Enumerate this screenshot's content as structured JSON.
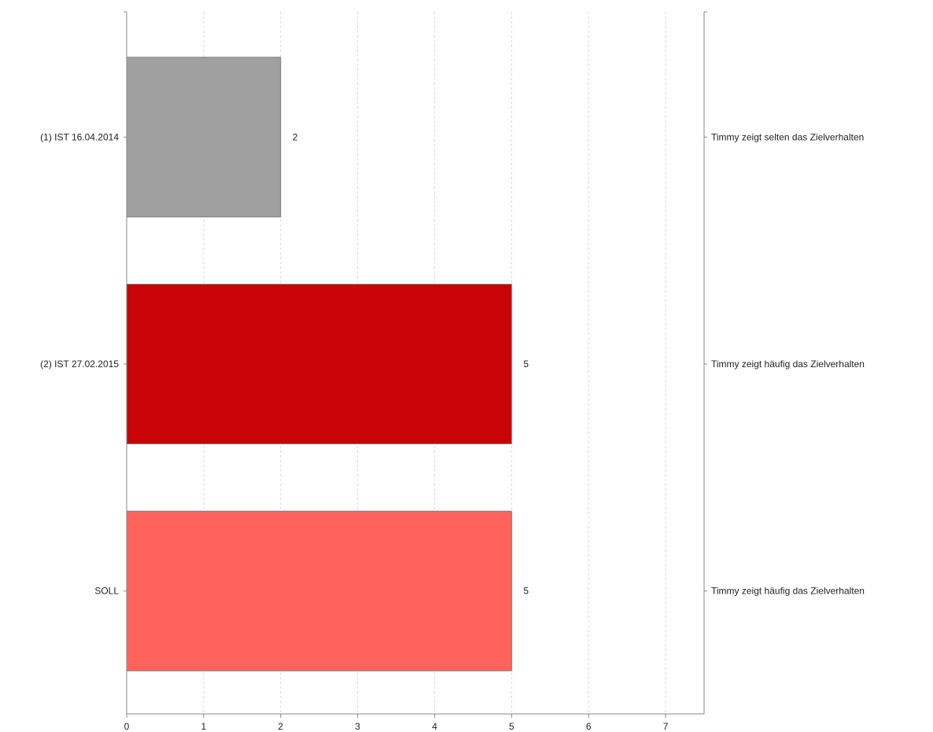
{
  "chart_data": {
    "type": "bar",
    "orientation": "horizontal",
    "categories": [
      "(1) IST 16.04.2014",
      "(2) IST 27.02.2015",
      "SOLL"
    ],
    "values": [
      2,
      5,
      5
    ],
    "value_labels": [
      "2",
      "5",
      "5"
    ],
    "descriptions": [
      "Timmy zeigt selten das Zielverhalten",
      "Timmy zeigt häufig das Zielverhalten",
      "Timmy zeigt häufig das Zielverhalten"
    ],
    "colors": [
      "#a0a0a0",
      "#c90306",
      "#ff635c"
    ],
    "xlim": [
      0,
      7.5
    ],
    "xticks": [
      0,
      1,
      2,
      3,
      4,
      5,
      6,
      7
    ],
    "grid": "vertical-dashed",
    "title": "",
    "xlabel": "",
    "ylabel": ""
  }
}
